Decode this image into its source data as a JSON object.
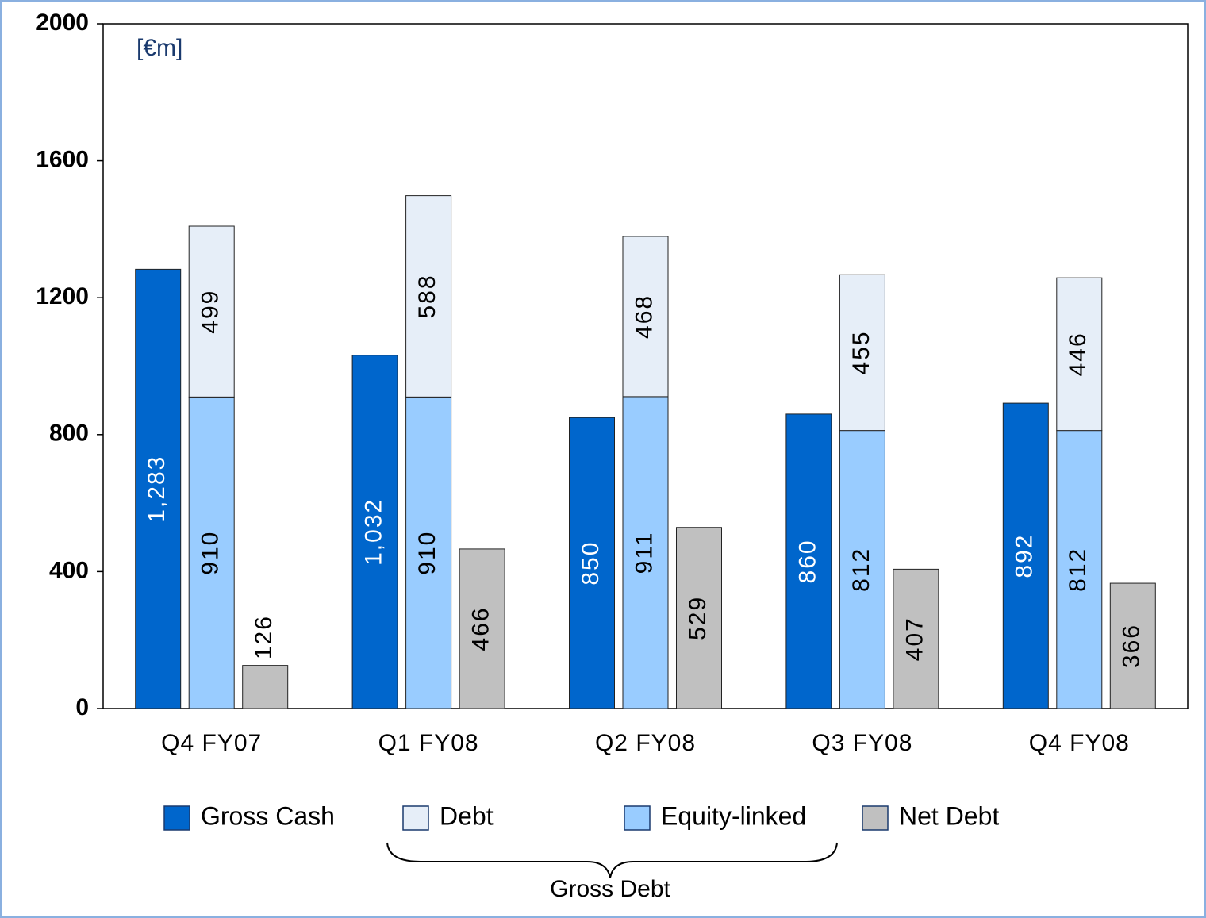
{
  "chart_data": {
    "type": "bar",
    "unit_label": "[€m]",
    "categories": [
      "Q4 FY07",
      "Q1 FY08",
      "Q2 FY08",
      "Q3 FY08",
      "Q4 FY08"
    ],
    "series": [
      {
        "name": "Gross Cash",
        "color": "#0066cc",
        "values": [
          1283,
          1032,
          850,
          860,
          892
        ],
        "value_labels": [
          "1,283",
          "1,032",
          "850",
          "860",
          "892"
        ],
        "label_color": "#ffffff"
      },
      {
        "name": "Debt",
        "color": "#e6eef8",
        "values": [
          499,
          588,
          468,
          455,
          446
        ],
        "stack": true
      },
      {
        "name": "Equity-linked",
        "color": "#99ccff",
        "values": [
          910,
          910,
          911,
          812,
          812
        ],
        "stack": true
      },
      {
        "name": "Net Debt",
        "color": "#c0c0c0",
        "values": [
          126,
          466,
          529,
          407,
          366
        ]
      }
    ],
    "bracket_label": "Gross Debt",
    "ylim": [
      0,
      2000
    ],
    "yticks": [
      0,
      400,
      800,
      1200,
      1600,
      2000
    ],
    "grid": false,
    "legend": "bottom"
  }
}
